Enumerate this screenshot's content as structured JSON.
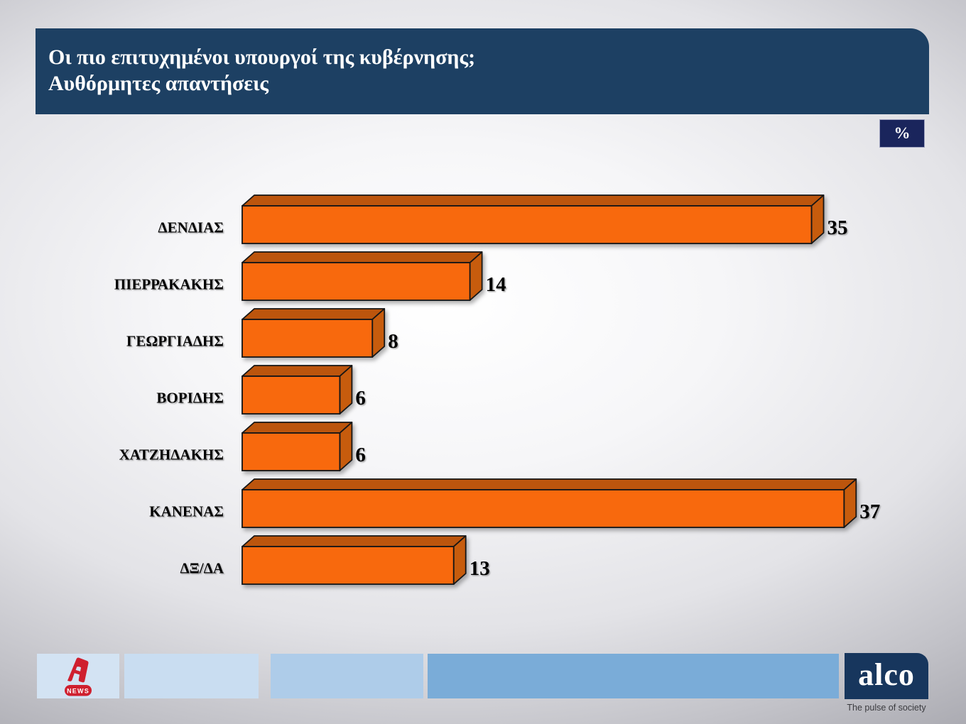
{
  "header": {
    "title_line1": "Οι πιο επιτυχημένοι υπουργοί της κυβέρνησης;",
    "title_line2": "Αυθόρμητες απαντήσεις",
    "bg_color": "#1D4063"
  },
  "unit_badge": {
    "label": "%",
    "bg_color": "#1A255C"
  },
  "chart_data": {
    "type": "bar",
    "orientation": "horizontal",
    "title": "Οι πιο επιτυχημένοι υπουργοί της κυβέρνησης;",
    "subtitle": "Αυθόρμητες απαντήσεις",
    "unit": "%",
    "categories": [
      "ΔΕΝΔΙΑΣ",
      "ΠΙΕΡΡΑΚΑΚΗΣ",
      "ΓΕΩΡΓΙΑΔΗΣ",
      "ΒΟΡΙΔΗΣ",
      "ΧΑΤΖΗΔΑΚΗΣ",
      "ΚΑΝΕΝΑΣ",
      "ΔΞ/ΔΑ"
    ],
    "values": [
      35,
      14,
      8,
      6,
      6,
      37,
      13
    ],
    "xlim": [
      0,
      40
    ],
    "grid": false,
    "legend": "none",
    "value_labels": true,
    "bar_front_color": "#F8690A",
    "bar_top_color": "#BC5507",
    "bar_side_color": "#C75B0A",
    "bar_outline_color": "#141414",
    "label_color": "#000000",
    "value_color": "#000000"
  },
  "footer": {
    "stripes": [
      {
        "color": "#D3E3F3"
      },
      {
        "color": "#C9DDF1"
      },
      {
        "color": "#AECCE9"
      },
      {
        "color": "#7AACD8"
      }
    ],
    "alpha_logo": {
      "news_label": "NEWS",
      "color": "#CF1F2E"
    },
    "alco": {
      "logo_text": "alco",
      "tagline": "The pulse of society",
      "bg_color": "#17365D"
    }
  }
}
